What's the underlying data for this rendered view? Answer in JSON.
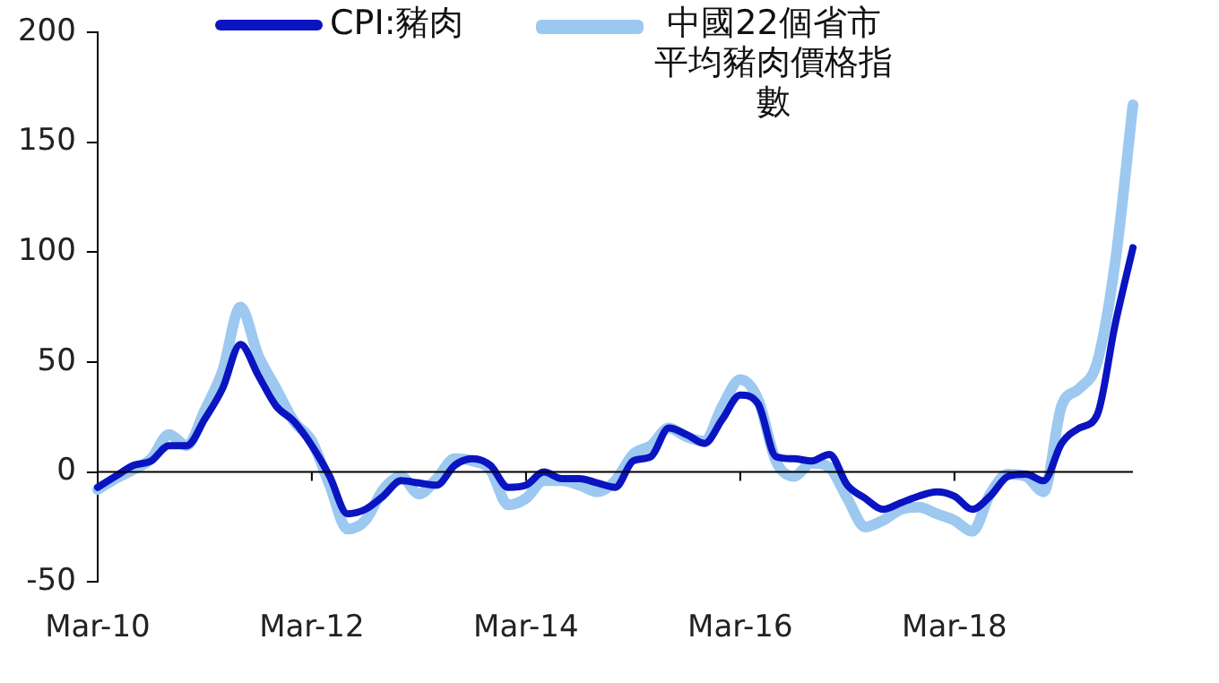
{
  "chart_data": {
    "type": "line",
    "categories": [
      "Mar-10",
      null,
      null,
      null,
      null,
      null,
      null,
      null,
      null,
      null,
      null,
      null,
      "Mar-12",
      null,
      null,
      null,
      null,
      null,
      null,
      null,
      null,
      null,
      null,
      null,
      "Mar-14",
      null,
      null,
      null,
      null,
      null,
      null,
      null,
      null,
      null,
      null,
      null,
      "Mar-16",
      null,
      null,
      null,
      null,
      null,
      null,
      null,
      null,
      null,
      null,
      null,
      "Mar-18",
      null,
      null,
      null,
      null,
      null,
      null,
      null,
      null,
      null,
      null
    ],
    "series": [
      {
        "name": "CPI:豬肉",
        "color": "#0a14c0",
        "values": [
          -7,
          -2,
          3,
          5,
          12,
          12,
          24,
          38,
          58,
          44,
          30,
          23,
          12,
          -2,
          -19,
          -17,
          -11,
          -4,
          -5,
          -6,
          3,
          6,
          3,
          -7,
          -6,
          0,
          -3,
          -3,
          -5,
          -7,
          5,
          7,
          20,
          17,
          13,
          24,
          35,
          31,
          7,
          6,
          5,
          8,
          -6,
          -12,
          -17,
          -14,
          -11,
          -9,
          -11,
          -17,
          -11,
          -2,
          -1,
          -4,
          13,
          20,
          26,
          67,
          102
        ]
      },
      {
        "name": "中國22個省市平均豬肉價格指數",
        "color": "#9dc8f0",
        "values": [
          -8,
          -3,
          1,
          6,
          17,
          12,
          28,
          46,
          75,
          53,
          38,
          23,
          14,
          -6,
          -26,
          -22,
          -8,
          -2,
          -10,
          -3,
          6,
          5,
          1,
          -15,
          -12,
          -4,
          -4,
          -6,
          -9,
          -4,
          8,
          12,
          20,
          16,
          14,
          30,
          42,
          33,
          5,
          -2,
          4,
          2,
          -12,
          -25,
          -22,
          -17,
          -16,
          -19,
          -22,
          -27,
          -10,
          -1,
          -2,
          -9,
          30,
          38,
          50,
          95,
          167
        ]
      }
    ],
    "ylim": [
      -50,
      200
    ],
    "yticks": [
      -50,
      0,
      50,
      100,
      150,
      200
    ],
    "ref_lines": [
      {
        "axis": "y",
        "value": 0,
        "color": "#000000",
        "line_style": "solid"
      }
    ],
    "grid": false,
    "legend": "top",
    "marker": "none",
    "line_style": "solid"
  }
}
